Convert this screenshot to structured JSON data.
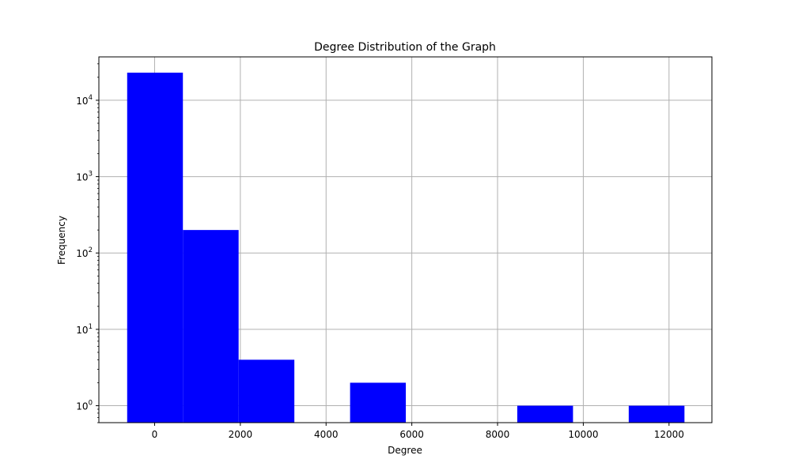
{
  "chart_data": {
    "type": "bar",
    "title": "Degree Distribution of the Graph",
    "xlabel": "Degree",
    "ylabel": "Frequency",
    "y_scale": "log",
    "grid": true,
    "bar_color": "#0000ff",
    "bins": [
      {
        "start": -640,
        "end": 660,
        "count": 23000
      },
      {
        "start": 660,
        "end": 1960,
        "count": 200
      },
      {
        "start": 1960,
        "end": 3260,
        "count": 4
      },
      {
        "start": 3260,
        "end": 4560,
        "count": 0
      },
      {
        "start": 4560,
        "end": 5860,
        "count": 2
      },
      {
        "start": 5860,
        "end": 7160,
        "count": 0
      },
      {
        "start": 7160,
        "end": 8460,
        "count": 0
      },
      {
        "start": 8460,
        "end": 9760,
        "count": 1
      },
      {
        "start": 9760,
        "end": 11060,
        "count": 0
      },
      {
        "start": 11060,
        "end": 12360,
        "count": 1
      }
    ],
    "xlim": [
      -1300,
      13000
    ],
    "ylim": [
      0.6,
      37000
    ],
    "x_ticks": [
      0,
      2000,
      4000,
      6000,
      8000,
      10000,
      12000
    ],
    "x_tick_labels": [
      "0",
      "2000",
      "4000",
      "6000",
      "8000",
      "10000",
      "12000"
    ],
    "y_ticks": [
      {
        "value": 1,
        "base": "10",
        "exp": "0"
      },
      {
        "value": 10,
        "base": "10",
        "exp": "1"
      },
      {
        "value": 100,
        "base": "10",
        "exp": "2"
      },
      {
        "value": 1000,
        "base": "10",
        "exp": "3"
      },
      {
        "value": 10000,
        "base": "10",
        "exp": "4"
      }
    ]
  }
}
